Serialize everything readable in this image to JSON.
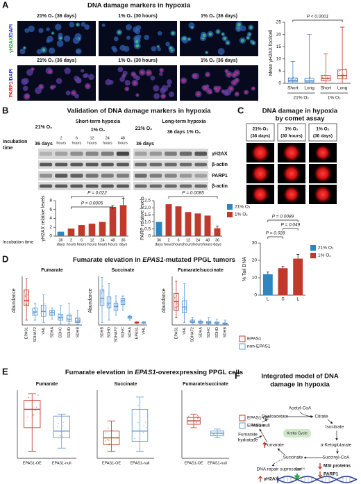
{
  "panel_letters": [
    "A",
    "B",
    "C",
    "D",
    "E",
    "F"
  ],
  "panel_a": {
    "title": "DNA damage markers in hypoxia",
    "image_labels": [
      [
        "21% O₂ (36 days)",
        "1% O₂ (30 hours)",
        "1% O₂ (36 days)"
      ],
      [
        "21% O₂ (36 days)",
        "1% O₂ (30 hours)",
        "1% O₂ (36 days)"
      ]
    ],
    "row_labels": [
      [
        "γH2AX",
        "/DAPI"
      ],
      [
        "PARP1",
        "/DAPI"
      ]
    ],
    "chart": {
      "type": "box",
      "y_label": "Mean γH2AX foci/cell",
      "categories": [
        "Short",
        "Long",
        "Short",
        "Long"
      ],
      "groups": [
        "21% O₂",
        "1% O₂"
      ],
      "boxes": [
        [
          0,
          0.6,
          1.2,
          2.2,
          9
        ],
        [
          0,
          0.5,
          1,
          2,
          20
        ],
        [
          0,
          1,
          2,
          3.2,
          12
        ],
        [
          0,
          1.8,
          3.2,
          5.5,
          23
        ]
      ],
      "colors": [
        "#4a86c5",
        "#4a86c5",
        "#c0392b",
        "#c0392b"
      ],
      "ylim": [
        0,
        25
      ],
      "yticks": [
        0,
        5,
        10,
        15,
        20,
        25
      ],
      "annotation": "P < 0.0001"
    }
  },
  "panel_b": {
    "title": "Validation of DNA damage markers in hypoxia",
    "blot": {
      "incubation_label": [
        "Incubation",
        "time"
      ],
      "control": [
        "21% O₂",
        "36 days"
      ],
      "short_term": "Short-term hypoxia",
      "short_o2": "1% O₂",
      "times": [
        "2",
        "6",
        "12",
        "24",
        "48"
      ],
      "time_units": [
        "hours",
        "hours",
        "hours",
        "hours",
        "hours"
      ],
      "control2": [
        "21% O₂",
        "36 days"
      ],
      "long_term": "Long-term hypoxia",
      "long_o2": "36 days 1% O₂",
      "bands": [
        "γH2AX",
        "β-actin",
        "PARP1",
        "β-actin"
      ]
    },
    "incubation_axis_label": "Incubation time",
    "charts": [
      {
        "type": "bar",
        "y_label": "γH2AX relative levels",
        "categories": [
          "36",
          "2",
          "6",
          "12",
          "24",
          "48",
          "36"
        ],
        "units": [
          "days",
          "hours",
          "hours",
          "hours",
          "hours",
          "hours",
          "days"
        ],
        "values": [
          1,
          1.7,
          2.5,
          2.8,
          3.2,
          6.6,
          7
        ],
        "errors": [
          null,
          null,
          null,
          null,
          null,
          0.3,
          1.5
        ],
        "colors": [
          "#2e86c1",
          "#c0392b",
          "#c0392b",
          "#c0392b",
          "#c0392b",
          "#c0392b",
          "#c0392b"
        ],
        "ylim": [
          0,
          8
        ],
        "yticks": [
          0,
          2,
          4,
          6,
          8
        ],
        "annotations": [
          "P = 0.022",
          "P = 0.0005"
        ]
      },
      {
        "type": "bar",
        "y_label": "PARP relative levels",
        "categories": [
          "36",
          "2",
          "6",
          "12",
          "24",
          "48",
          "36"
        ],
        "units": [
          "days",
          "hours",
          "hours",
          "hours",
          "hours",
          "hours",
          "days"
        ],
        "values": [
          1,
          2.25,
          2.1,
          1.7,
          1.6,
          1.45,
          0.55
        ],
        "errors": [
          null,
          null,
          null,
          null,
          null,
          null,
          0.15
        ],
        "colors": [
          "#2e86c1",
          "#c0392b",
          "#c0392b",
          "#c0392b",
          "#c0392b",
          "#c0392b",
          "#c0392b"
        ],
        "ylim": [
          0,
          2.5
        ],
        "yticks": [
          0,
          0.5,
          {
            "value": 1,
            "label": "1.0"
          },
          1.5,
          {
            "value": 2,
            "label": "2.0"
          },
          2.5
        ],
        "annotations": [
          "P = 0.0085"
        ]
      }
    ],
    "legend": [
      {
        "name": "21% O₂",
        "color": "#2e86c1"
      },
      {
        "name": "1% O₂",
        "color": "#c0392b"
      }
    ]
  },
  "panel_c": {
    "title_lines": [
      "DNA damage in hypoxia",
      "by comet assay"
    ],
    "image_labels": [
      [
        "21% O₂",
        "(36 days)"
      ],
      [
        "1% O₂",
        "(30 hours)"
      ],
      [
        "1% O₂",
        "(36 days)"
      ]
    ],
    "chart": {
      "type": "bar",
      "y_label": "% Tail DNA",
      "categories": [
        "L",
        "S",
        "L"
      ],
      "values": [
        12,
        15.5,
        21
      ],
      "errors": [
        1.3,
        1,
        2.4
      ],
      "colors": [
        "#2e86c1",
        "#c0392b",
        "#c0392b"
      ],
      "ylim": [
        0,
        30
      ],
      "yticks": [
        0,
        10,
        20,
        30
      ],
      "annotations": [
        "P = 0.0089",
        "P = 0.049",
        "P = 0.028"
      ]
    },
    "legend": [
      {
        "name": "21% O₂",
        "color": "#2e86c1"
      },
      {
        "name": "1% O₂",
        "color": "#c0392b"
      }
    ]
  },
  "panel_d": {
    "title_parts": [
      "Fumarate elevation in ",
      "EPAS1",
      "-mutated PPGL tumors"
    ],
    "charts": [
      {
        "type": "box",
        "title": "Fumarate",
        "y_label": "Abundance",
        "categories": [
          "EPAS1",
          "SDHAF2",
          "VHL",
          "SDHA",
          "SDHC",
          "SDHD",
          "SDHB"
        ],
        "boxes": [
          [
            0.1,
            0.4,
            0.5,
            0.72,
            0.95
          ],
          [
            0.1,
            0.2,
            0.27,
            0.35,
            0.45
          ],
          [
            0.05,
            0.18,
            0.28,
            0.4,
            0.62
          ],
          [
            0.12,
            0.2,
            0.25,
            0.3,
            0.35
          ],
          [
            0.02,
            0.1,
            0.15,
            0.22,
            0.4
          ],
          [
            0.02,
            0.08,
            0.12,
            0.2,
            0.45
          ],
          [
            0.01,
            0.05,
            0.08,
            0.14,
            0.3
          ]
        ],
        "colors": [
          "#c0392b",
          "#5d9bd5",
          "#5d9bd5",
          "#5d9bd5",
          "#5d9bd5",
          "#5d9bd5",
          "#5d9bd5"
        ],
        "ylim": [
          0,
          1
        ]
      },
      {
        "type": "box",
        "title": "Succinate",
        "y_label": "Abundance",
        "categories": [
          "SDHB",
          "SDHD",
          "SDHAF2",
          "SDHC",
          "SDHA",
          "EPAS1",
          "VHL"
        ],
        "boxes": [
          [
            0.05,
            0.4,
            0.55,
            0.72,
            0.98
          ],
          [
            0.1,
            0.35,
            0.45,
            0.58,
            0.85
          ],
          [
            0.2,
            0.3,
            0.38,
            0.45,
            0.6
          ],
          [
            0.3,
            0.42,
            0.5,
            0.55,
            0.6
          ],
          [
            0.1,
            0.14,
            0.16,
            0.18,
            0.2
          ],
          [
            0.03,
            0.04,
            0.05,
            0.06,
            0.07
          ],
          [
            0.03,
            0.04,
            0.05,
            0.06,
            0.07
          ]
        ],
        "colors": [
          "#5d9bd5",
          "#5d9bd5",
          "#5d9bd5",
          "#5d9bd5",
          "#5d9bd5",
          "#c0392b",
          "#5d9bd5"
        ],
        "ylim": [
          0,
          1
        ]
      },
      {
        "type": "box",
        "title": "Fumarate/succinate",
        "y_label": "Abundance",
        "categories": [
          "EPAS1",
          "VHL",
          "SDHAF2",
          "SDHA",
          "SDHC",
          "SDHD",
          "SDHB"
        ],
        "boxes": [
          [
            0.15,
            0.3,
            0.48,
            0.65,
            0.9
          ],
          [
            0.05,
            0.25,
            0.37,
            0.5,
            0.85
          ],
          [
            0.02,
            0.05,
            0.07,
            0.1,
            0.15
          ],
          [
            0.02,
            0.04,
            0.06,
            0.08,
            0.1
          ],
          [
            0.01,
            0.03,
            0.05,
            0.07,
            0.15
          ],
          [
            0.01,
            0.03,
            0.04,
            0.06,
            0.12
          ],
          [
            0.01,
            0.02,
            0.03,
            0.04,
            0.1
          ]
        ],
        "colors": [
          "#c0392b",
          "#5d9bd5",
          "#5d9bd5",
          "#5d9bd5",
          "#5d9bd5",
          "#5d9bd5",
          "#5d9bd5"
        ],
        "ylim": [
          0,
          1
        ]
      }
    ],
    "legend": [
      {
        "name": "EPAS1",
        "color": "#c0392b"
      },
      {
        "name": "non-EPAS1",
        "color": "#5d9bd5"
      }
    ]
  },
  "panel_e": {
    "title_parts": [
      "Fumarate elevation in ",
      "EPAS1",
      "-overexpressing PPGL cells"
    ],
    "charts": [
      {
        "type": "box",
        "title": "Fumarate",
        "categories": [
          "EPAS1-OE",
          "EPAS1-null"
        ],
        "boxes": [
          [
            0.1,
            0.45,
            0.72,
            0.85,
            0.95
          ],
          [
            0.15,
            0.3,
            0.4,
            0.62,
            0.65
          ]
        ],
        "colors": [
          "#c0392b",
          "#5d9bd5"
        ],
        "ylim": [
          0,
          1
        ]
      },
      {
        "type": "box",
        "title": "Succinate",
        "categories": [
          "EPAS1-OE",
          "EPAS1-null"
        ],
        "boxes": [
          [
            0.1,
            0.2,
            0.3,
            0.4,
            0.55
          ],
          [
            0.1,
            0.25,
            0.4,
            0.72,
            0.9
          ]
        ],
        "colors": [
          "#c0392b",
          "#5d9bd5"
        ],
        "ylim": [
          0,
          1
        ]
      },
      {
        "type": "box",
        "title": "Fumarate/succinate",
        "categories": [
          "EPAS1-OE",
          "EPAS1-null"
        ],
        "boxes": [
          [
            0.45,
            0.5,
            0.55,
            0.6,
            0.65
          ],
          [
            0.3,
            0.33,
            0.37,
            0.4,
            0.43
          ]
        ],
        "colors": [
          "#c0392b",
          "#5d9bd5"
        ],
        "ylim": [
          0,
          1
        ]
      }
    ],
    "legend": [
      {
        "name": "EPAS1-OE",
        "color": "#c0392b"
      },
      {
        "name": "EPAS1-null",
        "color": "#5d9bd5"
      }
    ]
  },
  "panel_f": {
    "title_lines": [
      "Integrated model of DNA",
      "damage in hypoxia"
    ],
    "nodes": [
      [
        "Acetyl-CoA"
      ],
      [
        "Oxaloacetate"
      ],
      [
        "Citrate"
      ],
      [
        "Malate"
      ],
      [
        "Isocitrate"
      ],
      [
        "Krebs Cycle"
      ],
      [
        "Fumarate",
        "hydratase"
      ],
      [
        "Fumarate"
      ],
      [
        "α-Ketoglutarate"
      ],
      [
        "Succinate"
      ],
      [
        "Succinyl-CoA"
      ],
      [
        "DNA repair supression"
      ],
      [
        "MSI proteins"
      ],
      [
        "PARP1"
      ],
      [
        "γH2AX"
      ],
      [
        "Ser¹³⁹"
      ]
    ]
  }
}
